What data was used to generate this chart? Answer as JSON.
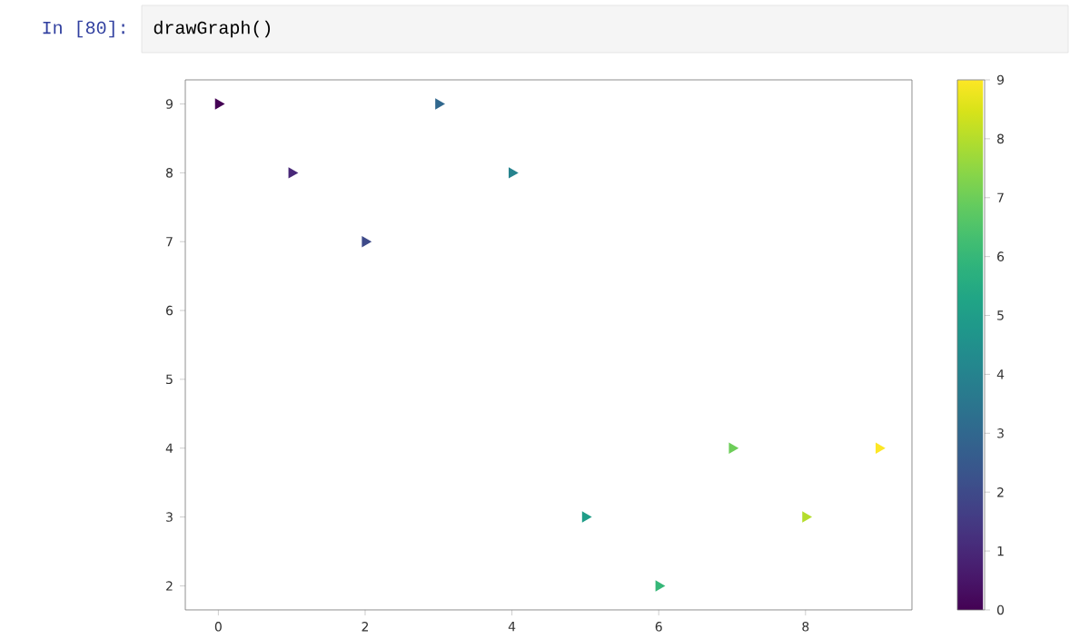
{
  "chart_data": {
    "type": "scatter",
    "annotations": [
      "In [80]:",
      "drawGraph()"
    ],
    "x": [
      0,
      1,
      2,
      3,
      4,
      5,
      6,
      7,
      8,
      9
    ],
    "values": [
      9,
      8,
      7,
      9,
      8,
      3,
      2,
      4,
      3,
      4
    ],
    "cvalues": [
      0,
      1,
      2,
      3,
      4,
      5,
      6,
      7,
      8,
      9
    ],
    "marker": "triangle",
    "xlim": [
      -0.45,
      9.45
    ],
    "ylim": [
      1.65,
      9.35
    ],
    "xticks": [
      0,
      2,
      4,
      6,
      8
    ],
    "yticks": [
      2,
      3,
      4,
      5,
      6,
      7,
      8,
      9
    ],
    "clim": [
      0,
      9
    ],
    "cticks": [
      0,
      1,
      2,
      3,
      4,
      5,
      6,
      7,
      8,
      9
    ]
  }
}
